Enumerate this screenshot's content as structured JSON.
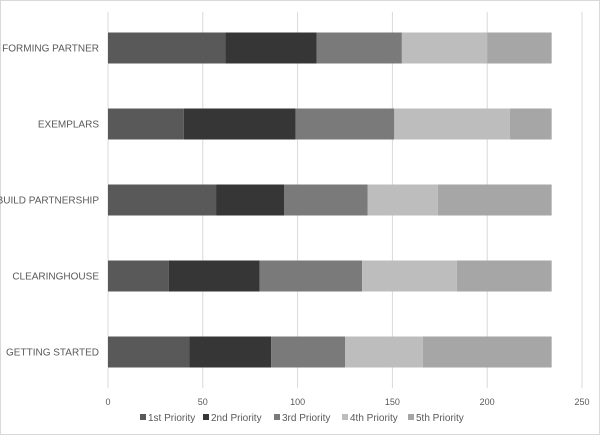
{
  "chart_data": {
    "type": "bar",
    "orientation": "horizontal",
    "stacked": true,
    "categories": [
      "FORMING PARTNER",
      "EXEMPLARS",
      "BUILD PARTNERSHIP",
      "CLEARINGHOUSE",
      "GETTING STARTED"
    ],
    "series": [
      {
        "name": "1st Priority",
        "color": "#595959",
        "values": [
          62,
          40,
          57,
          32,
          43
        ]
      },
      {
        "name": "2nd Priority",
        "color": "#363636",
        "values": [
          48,
          59,
          36,
          48,
          43
        ]
      },
      {
        "name": "3rd Priority",
        "color": "#7a7a7a",
        "values": [
          45,
          52,
          44,
          54,
          39
        ]
      },
      {
        "name": "4th Priority",
        "color": "#bdbdbd",
        "values": [
          45,
          61,
          37,
          50,
          41
        ]
      },
      {
        "name": "5th Priority",
        "color": "#a6a6a6",
        "values": [
          34,
          22,
          60,
          50,
          68
        ]
      }
    ],
    "xlim": [
      0,
      250
    ],
    "xticks": [
      0,
      50,
      100,
      150,
      200,
      250
    ],
    "grid": "vertical",
    "legend": "bottom",
    "title": "",
    "xlabel": "",
    "ylabel": ""
  }
}
